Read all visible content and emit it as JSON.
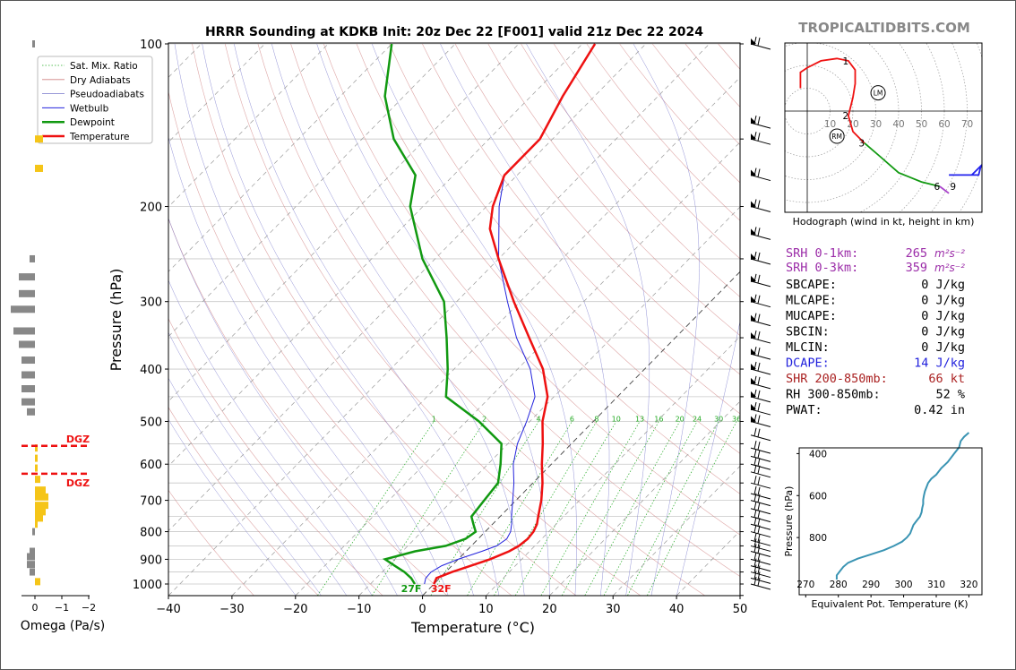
{
  "title": "HRRR Sounding at KDKB Init: 20z Dec 22 [F001] valid 21z Dec 22 2024",
  "brand": "TROPICALTIDBITS.COM",
  "colors": {
    "temperature": "#ee1111",
    "dewpoint": "#119911",
    "wetbulb": "#2222dd",
    "hodo_red": "#ee1111",
    "hodo_green": "#119911",
    "hodo_blue": "#2222ee",
    "hodo_purple": "#aa44cc",
    "theta_e": "#3a94b3",
    "omega_pos": "#f5c518",
    "omega_neg": "#888888",
    "dgz": "#ee1111",
    "srh": "#9b2ca8",
    "dcape": "#2222dd",
    "shr": "#aa2222"
  },
  "chart_data": [
    {
      "type": "line",
      "name": "skew-t",
      "xlabel": "Temperature (°C)",
      "ylabel": "Pressure (hPa)",
      "xlim": [
        -40,
        50
      ],
      "ylim": [
        1050,
        100
      ],
      "y_scale": "log",
      "x_ticks": [
        "−40",
        "−30",
        "−20",
        "−10",
        "0",
        "10",
        "20",
        "30",
        "40",
        "50"
      ],
      "y_ticks": [
        "100",
        "200",
        "300",
        "400",
        "500",
        "600",
        "700",
        "800",
        "900",
        "1000"
      ],
      "legend": {
        "placement": "top-left",
        "items": [
          "Sat. Mix. Ratio",
          "Dry Adiabats",
          "Pseudoadiabats",
          "Wetbulb",
          "Dewpoint",
          "Temperature"
        ]
      },
      "mixing_ratio_labels": [
        "1",
        "2",
        "4",
        "6",
        "8",
        "10",
        "13",
        "16",
        "20",
        "24",
        "30",
        "36"
      ],
      "surface_labels": {
        "dewpoint": "27F",
        "temperature": "32F"
      },
      "temperature": {
        "p": [
          1000,
          975,
          950,
          925,
          900,
          870,
          850,
          825,
          800,
          775,
          750,
          700,
          650,
          600,
          550,
          500,
          450,
          400,
          350,
          300,
          250,
          220,
          200,
          175,
          150,
          125,
          100
        ],
        "t": [
          0,
          -0.5,
          1,
          3,
          5,
          6.8,
          7.5,
          7.8,
          7.6,
          7,
          6,
          4,
          1.5,
          -1.5,
          -4.5,
          -8,
          -11,
          -16,
          -23,
          -31,
          -40,
          -46,
          -49,
          -52,
          -52,
          -55,
          -58
        ]
      },
      "dewpoint": {
        "p": [
          1000,
          975,
          950,
          925,
          900,
          870,
          850,
          825,
          800,
          775,
          750,
          700,
          650,
          600,
          550,
          500,
          450,
          400,
          350,
          300,
          250,
          200,
          175,
          150,
          125,
          100
        ],
        "td": [
          -3,
          -4.5,
          -6.5,
          -9,
          -11.5,
          -8,
          -4,
          -2,
          -1.5,
          -3,
          -4.5,
          -5,
          -5.5,
          -8,
          -11,
          -18,
          -27,
          -31,
          -36,
          -42,
          -52,
          -62,
          -66,
          -75,
          -83,
          -90
        ]
      },
      "wetbulb": {
        "p": [
          1000,
          975,
          950,
          925,
          900,
          870,
          850,
          825,
          800,
          775,
          750,
          700,
          650,
          600,
          550,
          500,
          450,
          400,
          350,
          300,
          250,
          200,
          175,
          150,
          125,
          100
        ],
        "tw": [
          -1.5,
          -2.2,
          -2.3,
          -1.6,
          0,
          2.5,
          4,
          4.5,
          4,
          3,
          1.8,
          -0.5,
          -3,
          -6,
          -8.5,
          -10.5,
          -13,
          -18,
          -25,
          -32,
          -40,
          -48,
          -52,
          -52,
          -55,
          -58
        ]
      }
    },
    {
      "type": "bar",
      "name": "omega",
      "xlabel": "Omega (Pa/s)",
      "x_ticks": [
        "0",
        "−1",
        "−2"
      ],
      "dgz_label": "DGZ",
      "dgz_pressures": [
        555,
        625
      ],
      "p": [
        100,
        150,
        170,
        250,
        270,
        290,
        310,
        340,
        360,
        385,
        410,
        435,
        460,
        480,
        560,
        585,
        610,
        640,
        670,
        690,
        715,
        735,
        755,
        775,
        800,
        870,
        890,
        920,
        950,
        990
      ],
      "omega": [
        -0.1,
        0.3,
        0.3,
        -0.2,
        -0.6,
        -0.6,
        -0.9,
        -0.8,
        -0.6,
        -0.5,
        -0.5,
        -0.5,
        -0.5,
        -0.3,
        0.1,
        0.1,
        0.1,
        0.2,
        0.4,
        0.5,
        0.5,
        0.4,
        0.3,
        0.1,
        -0.1,
        -0.2,
        -0.3,
        -0.3,
        -0.2,
        0.2
      ]
    },
    {
      "type": "line",
      "name": "hodograph",
      "caption": "Hodograph (wind in kt, height in km)",
      "ring_labels": [
        "10",
        "20",
        "30",
        "40",
        "50",
        "60",
        "70"
      ],
      "height_labels": [
        {
          "label": "1",
          "u": 18,
          "v": 22
        },
        {
          "label": "2",
          "u": 18,
          "v": -2
        },
        {
          "label": "3",
          "u": 25,
          "v": -14
        },
        {
          "label": "6",
          "u": 58,
          "v": -33
        },
        {
          "label": "9",
          "u": 65,
          "v": -33
        }
      ],
      "markers": [
        {
          "label": "LM",
          "u": 31,
          "v": 8
        },
        {
          "label": "RM",
          "u": 13,
          "v": -11
        }
      ],
      "segments": [
        {
          "color": "red",
          "u": [
            -3,
            -3,
            0,
            6,
            13,
            18,
            21,
            21,
            20,
            19,
            18,
            20,
            25
          ],
          "v": [
            10,
            17,
            19,
            22,
            23,
            22,
            18,
            12,
            6,
            2,
            -2,
            -9,
            -14
          ]
        },
        {
          "color": "green",
          "u": [
            25,
            32,
            40,
            50,
            58
          ],
          "v": [
            -14,
            -20,
            -27,
            -31,
            -33
          ]
        },
        {
          "color": "purple",
          "u": [
            58,
            62
          ],
          "v": [
            -33,
            -36
          ]
        },
        {
          "color": "blue",
          "u": [
            62,
            72,
            76,
            75,
            62
          ],
          "v": [
            -28,
            -28,
            -24,
            -28,
            -28
          ]
        }
      ]
    },
    {
      "type": "line",
      "name": "theta-e",
      "xlabel": "Equivalent Pot. Temperature (K)",
      "ylabel": "Pressure (hPa)",
      "xlim": [
        268,
        324
      ],
      "ylim": [
        1000,
        300
      ],
      "x_ticks": [
        "270",
        "280",
        "290",
        "300",
        "310",
        "320"
      ],
      "y_ticks": [
        "400",
        "600",
        "800"
      ],
      "p": [
        1000,
        980,
        960,
        940,
        920,
        900,
        880,
        860,
        840,
        820,
        800,
        780,
        760,
        740,
        720,
        700,
        680,
        660,
        640,
        620,
        600,
        580,
        560,
        540,
        520,
        500,
        470,
        440,
        400,
        370,
        340,
        320,
        300
      ],
      "theta_e": [
        279.5,
        279.5,
        280.5,
        281.5,
        283,
        286,
        290,
        294,
        297,
        299.5,
        301,
        302,
        302.5,
        303,
        304,
        305,
        305.5,
        305.7,
        306,
        306,
        306.2,
        306.5,
        307,
        307.5,
        308.5,
        310,
        311.5,
        313.5,
        315.5,
        317,
        317.5,
        318.5,
        320
      ]
    }
  ],
  "stats": {
    "srh1": {
      "label": "SRH 0-1km:",
      "value": "265"
    },
    "srh3": {
      "label": "SRH 0-3km:",
      "value": "359"
    },
    "srh_unit": "m²s⁻²",
    "rows": [
      {
        "label": "SBCAPE:",
        "value": "0 J/kg",
        "color": "black"
      },
      {
        "label": "MLCAPE:",
        "value": "0 J/kg",
        "color": "black"
      },
      {
        "label": "MUCAPE:",
        "value": "0 J/kg",
        "color": "black"
      },
      {
        "label": "SBCIN:",
        "value": "0 J/kg",
        "color": "black"
      },
      {
        "label": "MLCIN:",
        "value": "0 J/kg",
        "color": "black"
      },
      {
        "label": "DCAPE:",
        "value": "14 J/kg",
        "color": "dcape"
      },
      {
        "label": "SHR 200-850mb:",
        "value": "66 kt",
        "color": "shr"
      },
      {
        "label": "RH 300-850mb:",
        "value": "52 %",
        "color": "black"
      },
      {
        "label": "PWAT:",
        "value": "0.42 in",
        "color": "black"
      }
    ]
  }
}
